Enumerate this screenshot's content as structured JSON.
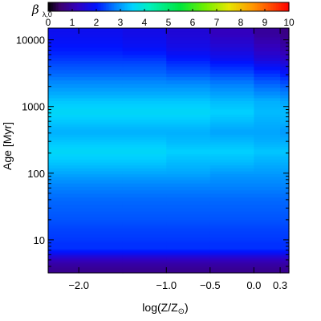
{
  "chart_data": {
    "type": "heatmap",
    "title": "",
    "xlabel": {
      "main": "log(Z/Z",
      "subscript": "⊙",
      "close": ")"
    },
    "ylabel": {
      "main": "Age",
      "unit": "[Myr]"
    },
    "x_scale": "linear",
    "y_scale": "log",
    "x_range": [
      -2.35,
      0.4
    ],
    "y_range": [
      3.2,
      15000
    ],
    "x_ticks": [
      {
        "value": -2.0,
        "label": "−2.0"
      },
      {
        "value": -1.0,
        "label": "−1.0"
      },
      {
        "value": -0.5,
        "label": "−0.5"
      },
      {
        "value": 0.0,
        "label": "0.0"
      },
      {
        "value": 0.3,
        "label": "0.3"
      }
    ],
    "y_ticks": [
      {
        "value": 10,
        "label": "10"
      },
      {
        "value": 100,
        "label": "100"
      },
      {
        "value": 1000,
        "label": "1000"
      },
      {
        "value": 10000,
        "label": "10000"
      }
    ],
    "colorbar": {
      "label_symbol": "β",
      "label_subscript": "λ,0",
      "range": [
        0,
        10
      ],
      "ticks": [
        "0",
        "1",
        "2",
        "3",
        "4",
        "5",
        "6",
        "7",
        "8",
        "9",
        "10"
      ],
      "colormap": "rainbow",
      "placement": "top"
    },
    "age_bins_myr": [
      3.2,
      4,
      5,
      6,
      7,
      8,
      10,
      15,
      20,
      30,
      50,
      80,
      120,
      180,
      250,
      350,
      500,
      700,
      1000,
      1500,
      2500,
      4000,
      6000,
      10000,
      15000
    ],
    "logZ_bins": [
      -2.35,
      -2.0,
      -1.5,
      -1.0,
      -0.5,
      0.0,
      0.3,
      0.4
    ],
    "values": [
      [
        0.8,
        0.8,
        0.8,
        0.8,
        0.8,
        0.8,
        0.8
      ],
      [
        1.0,
        1.0,
        1.0,
        1.0,
        1.0,
        1.0,
        1.0
      ],
      [
        1.4,
        1.4,
        1.4,
        1.4,
        1.4,
        1.4,
        1.4
      ],
      [
        1.9,
        1.9,
        1.9,
        1.9,
        1.9,
        1.9,
        1.9
      ],
      [
        2.2,
        2.2,
        2.2,
        2.2,
        2.2,
        2.2,
        2.2
      ],
      [
        2.2,
        2.2,
        2.2,
        2.2,
        2.2,
        2.2,
        2.2
      ],
      [
        2.3,
        2.3,
        2.3,
        2.3,
        2.3,
        2.3,
        2.3
      ],
      [
        2.4,
        2.4,
        2.4,
        2.4,
        2.4,
        2.4,
        2.4
      ],
      [
        2.5,
        2.5,
        2.5,
        2.5,
        2.5,
        2.5,
        2.5
      ],
      [
        2.6,
        2.6,
        2.6,
        2.6,
        2.6,
        2.6,
        2.6
      ],
      [
        2.8,
        2.8,
        2.8,
        2.8,
        2.8,
        2.8,
        2.8
      ],
      [
        3.1,
        3.1,
        3.1,
        3.1,
        3.0,
        3.0,
        3.0
      ],
      [
        3.4,
        3.4,
        3.4,
        3.3,
        3.3,
        3.2,
        3.2
      ],
      [
        3.6,
        3.6,
        3.6,
        3.5,
        3.5,
        3.4,
        3.4
      ],
      [
        3.4,
        3.4,
        3.4,
        3.3,
        3.3,
        3.2,
        3.2
      ],
      [
        3.2,
        3.2,
        3.2,
        3.2,
        3.1,
        3.1,
        3.0
      ],
      [
        3.4,
        3.4,
        3.4,
        3.4,
        3.3,
        3.2,
        3.2
      ],
      [
        3.6,
        3.6,
        3.6,
        3.6,
        3.5,
        3.3,
        3.3
      ],
      [
        3.4,
        3.4,
        3.4,
        3.4,
        3.3,
        3.2,
        3.1
      ],
      [
        3.0,
        3.0,
        3.0,
        3.0,
        2.9,
        2.7,
        2.6
      ],
      [
        2.6,
        2.6,
        2.6,
        2.5,
        2.4,
        2.2,
        2.0
      ],
      [
        2.3,
        2.3,
        2.3,
        2.1,
        1.9,
        1.6,
        1.4
      ],
      [
        2.0,
        2.0,
        1.9,
        1.7,
        1.5,
        1.2,
        1.0
      ],
      [
        1.8,
        1.8,
        1.7,
        1.5,
        1.2,
        0.9,
        0.7
      ]
    ]
  }
}
